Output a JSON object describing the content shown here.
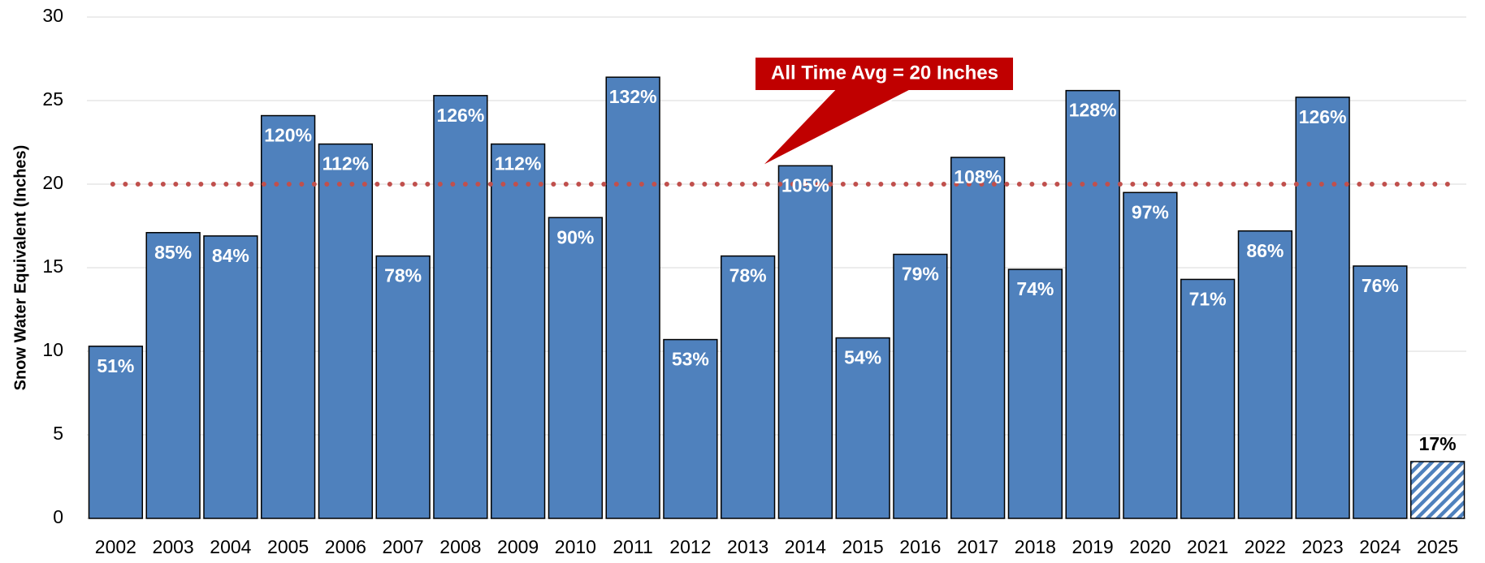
{
  "chart_data": {
    "type": "bar",
    "y_axis_label": "Snow Water Equivalent (Inches)",
    "categories": [
      "2002",
      "2003",
      "2004",
      "2005",
      "2006",
      "2007",
      "2008",
      "2009",
      "2010",
      "2011",
      "2012",
      "2013",
      "2014",
      "2015",
      "2016",
      "2017",
      "2018",
      "2019",
      "2020",
      "2021",
      "2022",
      "2023",
      "2024",
      "2025"
    ],
    "values": [
      10.3,
      17.1,
      16.9,
      24.1,
      22.4,
      15.7,
      25.3,
      22.4,
      18.0,
      26.4,
      10.7,
      15.7,
      21.1,
      10.8,
      15.8,
      21.6,
      14.9,
      25.6,
      19.5,
      14.3,
      17.2,
      25.2,
      15.1,
      3.4
    ],
    "percent_labels": [
      "51%",
      "85%",
      "84%",
      "120%",
      "112%",
      "78%",
      "126%",
      "112%",
      "90%",
      "132%",
      "53%",
      "78%",
      "105%",
      "54%",
      "79%",
      "108%",
      "74%",
      "128%",
      "97%",
      "71%",
      "86%",
      "126%",
      "76%",
      "17%"
    ],
    "color": "#4f81bd",
    "hatched_index": 23,
    "average": 20,
    "average_color": "#c0504d",
    "annotation": "All Time Avg = 20 Inches",
    "annotation_color": "#c00000",
    "ylim": [
      0,
      30
    ],
    "yticks": [
      0,
      5,
      10,
      15,
      20,
      25,
      30
    ],
    "grid": true
  }
}
